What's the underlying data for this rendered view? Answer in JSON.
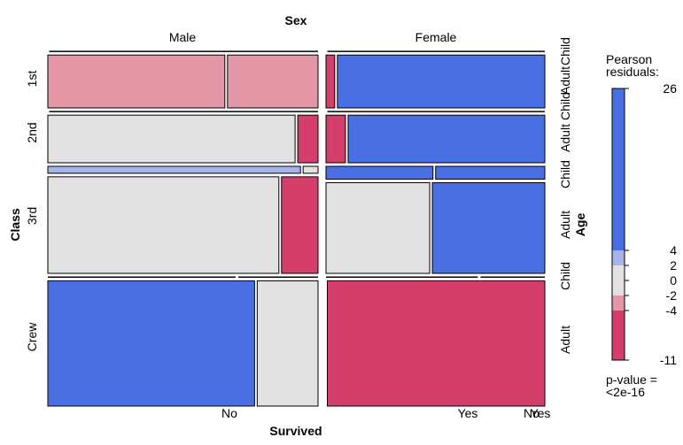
{
  "chart_data": {
    "type": "mosaic",
    "variables": {
      "row_var": {
        "name": "Class",
        "levels": [
          "1st",
          "2nd",
          "3rd",
          "Crew"
        ]
      },
      "col_var": {
        "name": "Sex",
        "levels": [
          "Male",
          "Female"
        ]
      },
      "age_var": {
        "name": "Age",
        "levels": [
          "Child",
          "Adult"
        ]
      },
      "survived_var": {
        "name": "Survived",
        "levels": [
          "No",
          "Yes"
        ]
      }
    },
    "cells": [
      {
        "class": "1st",
        "sex": "Male",
        "age": "Child",
        "survived": "No",
        "count": 0,
        "residual": 0
      },
      {
        "class": "1st",
        "sex": "Male",
        "age": "Child",
        "survived": "Yes",
        "count": 5,
        "residual": 1
      },
      {
        "class": "1st",
        "sex": "Male",
        "age": "Adult",
        "survived": "No",
        "count": 118,
        "residual": -3
      },
      {
        "class": "1st",
        "sex": "Male",
        "age": "Adult",
        "survived": "Yes",
        "count": 57,
        "residual": -3
      },
      {
        "class": "1st",
        "sex": "Female",
        "age": "Child",
        "survived": "No",
        "count": 0,
        "residual": 0
      },
      {
        "class": "1st",
        "sex": "Female",
        "age": "Child",
        "survived": "Yes",
        "count": 1,
        "residual": 1
      },
      {
        "class": "1st",
        "sex": "Female",
        "age": "Adult",
        "survived": "No",
        "count": 4,
        "residual": -5
      },
      {
        "class": "1st",
        "sex": "Female",
        "age": "Adult",
        "survived": "Yes",
        "count": 140,
        "residual": 20
      },
      {
        "class": "2nd",
        "sex": "Male",
        "age": "Child",
        "survived": "No",
        "count": 0,
        "residual": 0
      },
      {
        "class": "2nd",
        "sex": "Male",
        "age": "Child",
        "survived": "Yes",
        "count": 11,
        "residual": 4.5
      },
      {
        "class": "2nd",
        "sex": "Male",
        "age": "Adult",
        "survived": "No",
        "count": 154,
        "residual": 1
      },
      {
        "class": "2nd",
        "sex": "Male",
        "age": "Adult",
        "survived": "Yes",
        "count": 14,
        "residual": -5
      },
      {
        "class": "2nd",
        "sex": "Female",
        "age": "Child",
        "survived": "No",
        "count": 0,
        "residual": 0
      },
      {
        "class": "2nd",
        "sex": "Female",
        "age": "Child",
        "survived": "Yes",
        "count": 13,
        "residual": 5
      },
      {
        "class": "2nd",
        "sex": "Female",
        "age": "Adult",
        "survived": "No",
        "count": 13,
        "residual": -5
      },
      {
        "class": "2nd",
        "sex": "Female",
        "age": "Adult",
        "survived": "Yes",
        "count": 80,
        "residual": 12
      },
      {
        "class": "3rd",
        "sex": "Male",
        "age": "Child",
        "survived": "No",
        "count": 35,
        "residual": 2.5
      },
      {
        "class": "3rd",
        "sex": "Male",
        "age": "Child",
        "survived": "Yes",
        "count": 13,
        "residual": 0
      },
      {
        "class": "3rd",
        "sex": "Male",
        "age": "Adult",
        "survived": "No",
        "count": 387,
        "residual": 1
      },
      {
        "class": "3rd",
        "sex": "Male",
        "age": "Adult",
        "survived": "Yes",
        "count": 75,
        "residual": -8
      },
      {
        "class": "3rd",
        "sex": "Female",
        "age": "Child",
        "survived": "No",
        "count": 17,
        "residual": 5
      },
      {
        "class": "3rd",
        "sex": "Female",
        "age": "Child",
        "survived": "Yes",
        "count": 14,
        "residual": 5
      },
      {
        "class": "3rd",
        "sex": "Female",
        "age": "Adult",
        "survived": "No",
        "count": 89,
        "residual": 1
      },
      {
        "class": "3rd",
        "sex": "Female",
        "age": "Adult",
        "survived": "Yes",
        "count": 76,
        "residual": 10
      },
      {
        "class": "Crew",
        "sex": "Male",
        "age": "Child",
        "survived": "No",
        "count": 0,
        "residual": 0
      },
      {
        "class": "Crew",
        "sex": "Male",
        "age": "Child",
        "survived": "Yes",
        "count": 0,
        "residual": 0
      },
      {
        "class": "Crew",
        "sex": "Male",
        "age": "Adult",
        "survived": "No",
        "count": 670,
        "residual": 26
      },
      {
        "class": "Crew",
        "sex": "Male",
        "age": "Adult",
        "survived": "Yes",
        "count": 192,
        "residual": 1
      },
      {
        "class": "Crew",
        "sex": "Female",
        "age": "Child",
        "survived": "No",
        "count": 0,
        "residual": 0
      },
      {
        "class": "Crew",
        "sex": "Female",
        "age": "Child",
        "survived": "Yes",
        "count": 0,
        "residual": 0
      },
      {
        "class": "Crew",
        "sex": "Female",
        "age": "Adult",
        "survived": "No",
        "count": 3,
        "residual": -5
      },
      {
        "class": "Crew",
        "sex": "Female",
        "age": "Adult",
        "survived": "Yes",
        "count": 20,
        "residual": -11
      }
    ],
    "legend": {
      "title_line1": "Pearson",
      "title_line2": "residuals:",
      "tick_labels": [
        "26",
        "4",
        "2",
        "0",
        "-2",
        "-4",
        "-11"
      ],
      "tick_values": [
        26,
        4,
        2,
        0,
        -2,
        -4,
        -11
      ],
      "pvalue_line1": "p-value =",
      "pvalue_line2": "<2e-16"
    },
    "colors": {
      "strong_positive": "#4a6fe3",
      "weak_positive": "#a6b4e8",
      "neutral": "#e2e2e2",
      "weak_negative": "#e296a6",
      "strong_negative": "#d33f6a"
    }
  }
}
